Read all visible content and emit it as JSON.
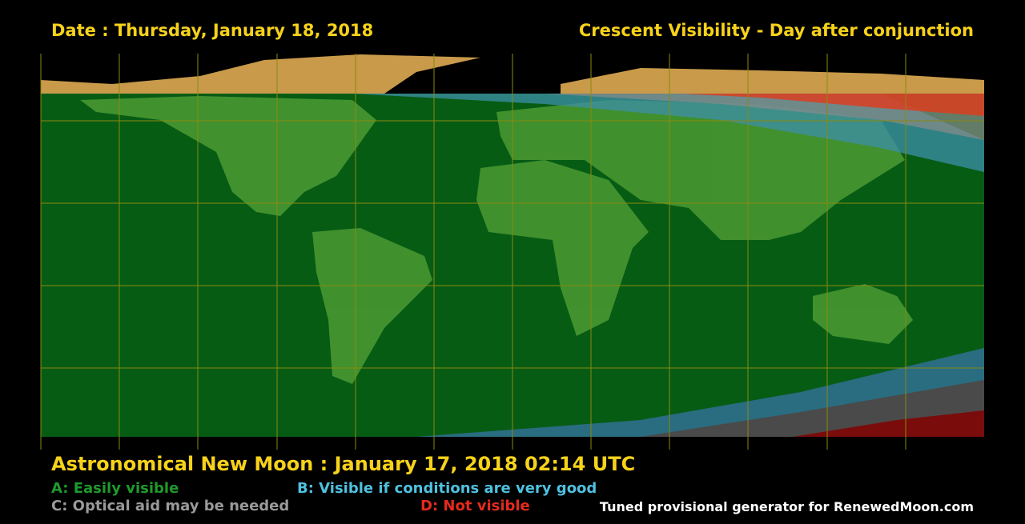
{
  "header": {
    "date": "Date : Thursday, January 18, 2018",
    "title": "Crescent Visibility - Day after conjunction"
  },
  "footer": {
    "new_moon": "Astronomical New Moon : January 17, 2018 02:14 UTC",
    "legend": [
      {
        "label": "A: Easily visible",
        "color": "#1f9a2c"
      },
      {
        "label": "B: Visible if conditions are very good",
        "color": "#4fc1df"
      },
      {
        "label": "C: Optical aid may be needed",
        "color": "#9a9a9a"
      },
      {
        "label": "D: Not visible",
        "color": "#e52a1c"
      }
    ],
    "credit": "Tuned provisional generator for RenewedMoon.com"
  }
}
